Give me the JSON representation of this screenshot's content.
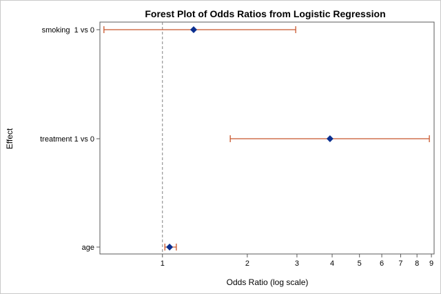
{
  "chart_data": {
    "type": "forest",
    "title": "Forest Plot of Odds Ratios from Logistic Regression",
    "xlabel": "Odds Ratio (log scale)",
    "ylabel": "Effect",
    "x_scale": "log",
    "xlim": [
      0.6,
      9.2
    ],
    "x_ticks": [
      1,
      2,
      3,
      4,
      5,
      6,
      7,
      8,
      9
    ],
    "reference_line": 1,
    "effects": [
      {
        "label": "smoking  1 vs 0",
        "odds_ratio": 1.29,
        "lower": 0.62,
        "upper": 2.97
      },
      {
        "label": "treatment 1 vs 0",
        "odds_ratio": 3.93,
        "lower": 1.74,
        "upper": 8.85
      },
      {
        "label": "age",
        "odds_ratio": 1.06,
        "lower": 1.02,
        "upper": 1.12
      }
    ],
    "colors": {
      "point": "#0b2f8f",
      "interval": "#c8552a",
      "reference": "#808080",
      "axis": "#5a5a5a"
    }
  }
}
